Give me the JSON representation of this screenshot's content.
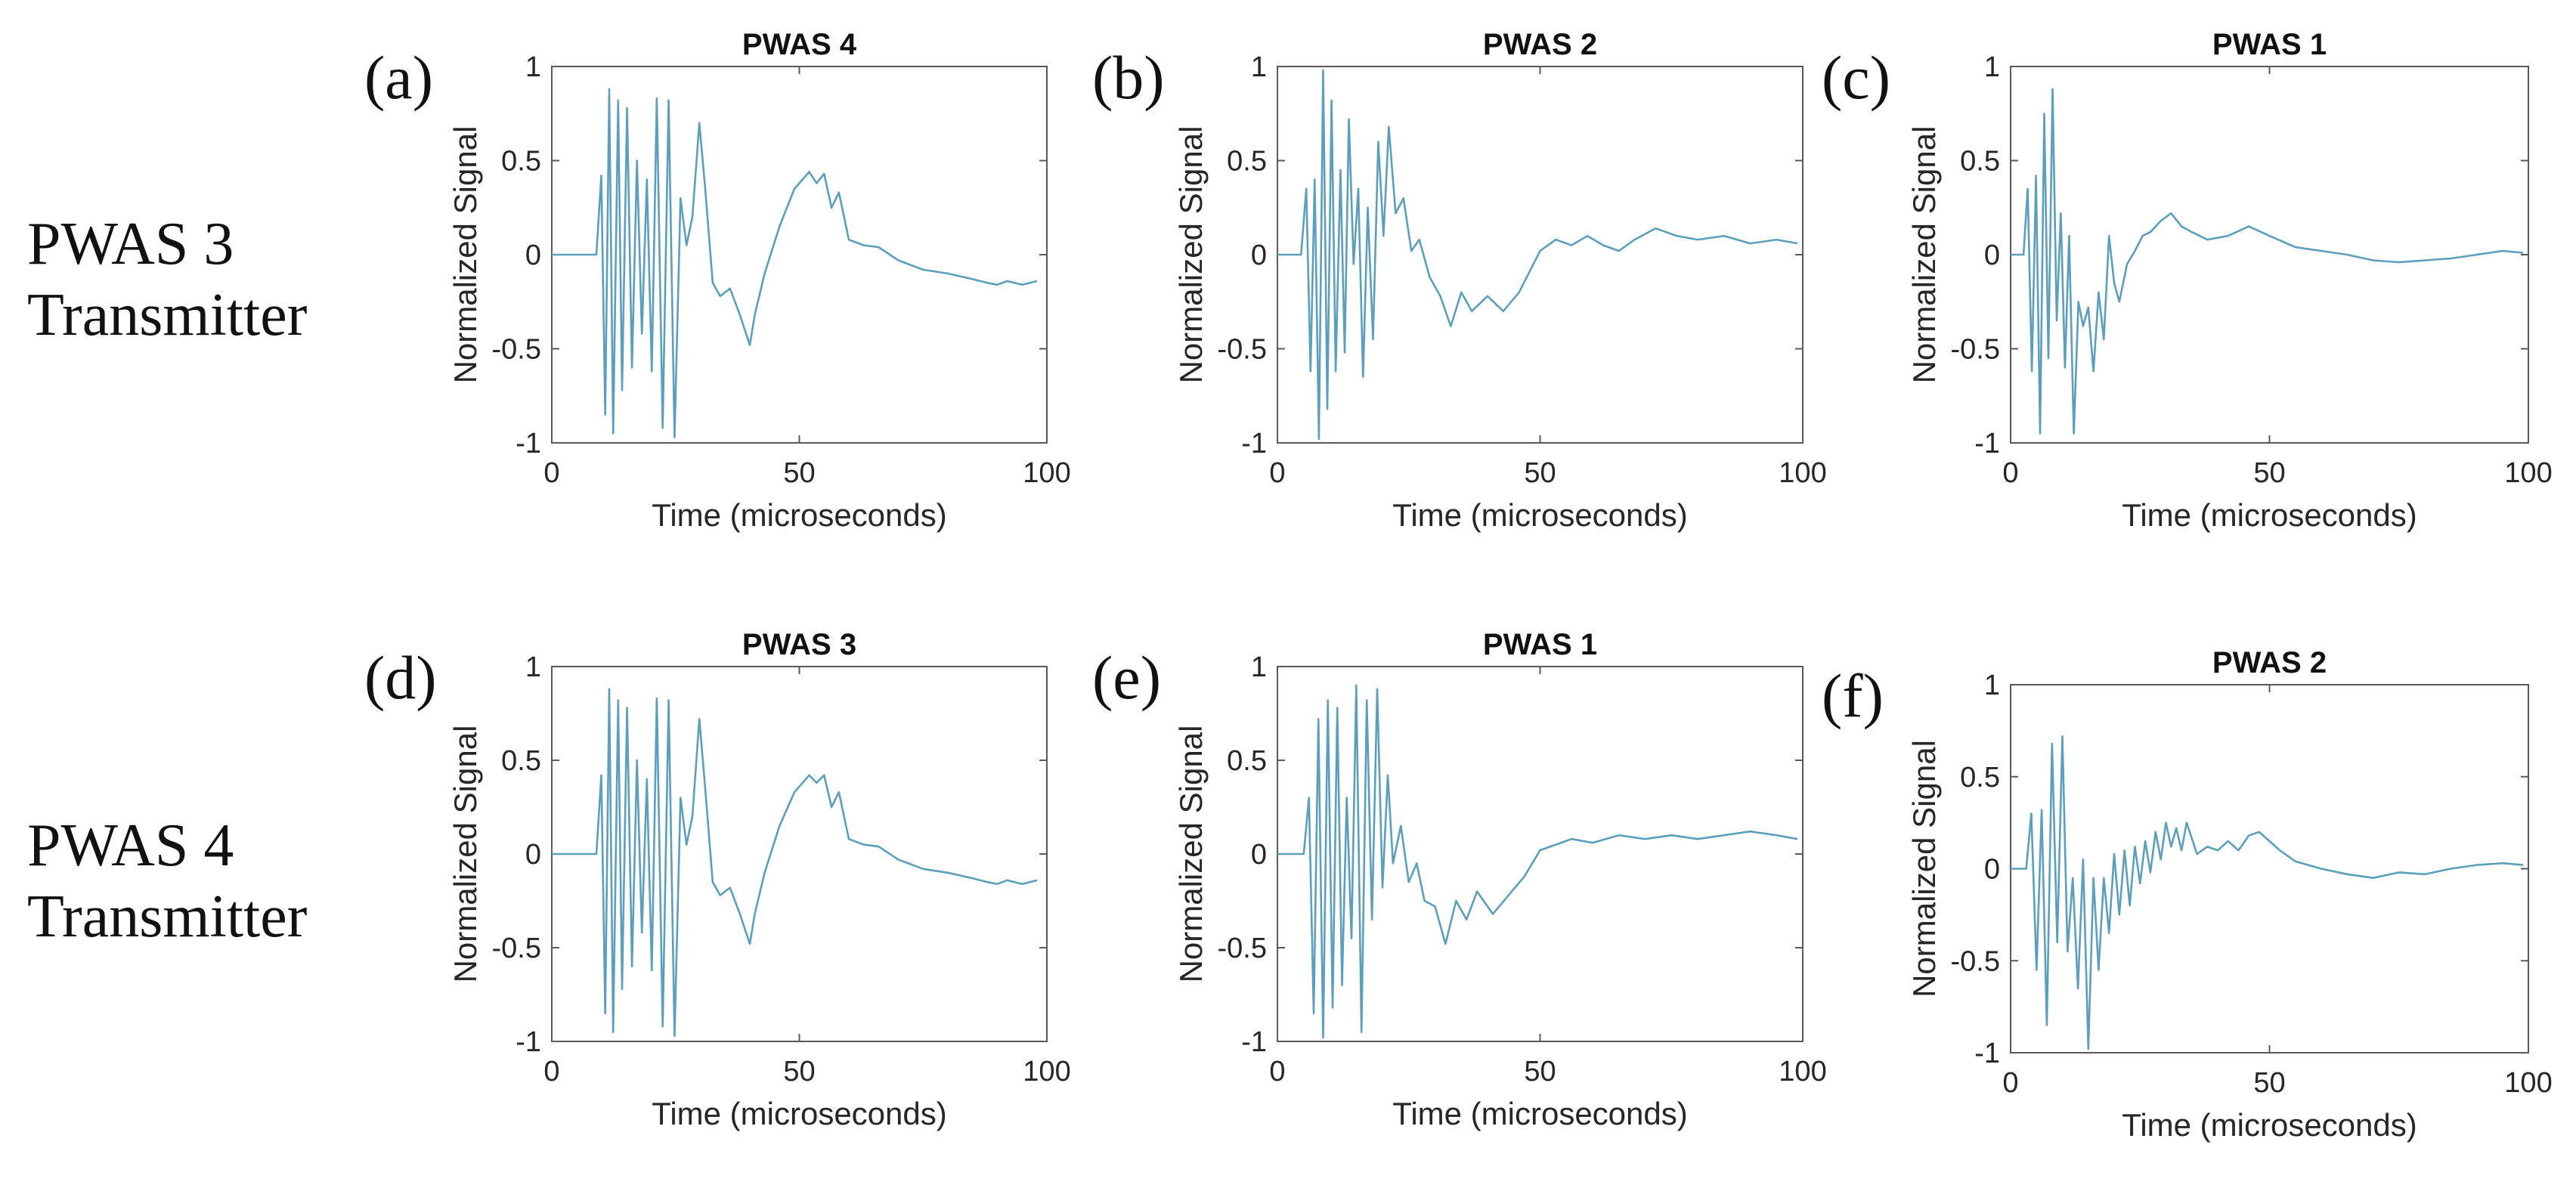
{
  "row_labels": [
    {
      "line1": "PWAS 3",
      "line2": "Transmitter"
    },
    {
      "line1": "PWAS 4",
      "line2": "Transmitter"
    }
  ],
  "colors": {
    "signal": "#5b9fbd",
    "axis": "#5a5a5a",
    "text": "#262626"
  },
  "chart_data": [
    {
      "type": "line",
      "panel": "(a)",
      "title": "PWAS 4",
      "xlabel": "Time (microseconds)",
      "ylabel": "Normalized Signal",
      "xlim": [
        0,
        100
      ],
      "ylim": [
        -1,
        1
      ],
      "xticks": [
        "0",
        "50",
        "100"
      ],
      "yticks": [
        "1",
        "0.5",
        "0",
        "-0.5",
        "-1"
      ],
      "series": [
        {
          "name": "signal",
          "x": [
            0,
            9,
            10,
            10.8,
            11.6,
            12.4,
            13.4,
            14.2,
            15.2,
            16.2,
            17.2,
            18.2,
            19.2,
            20.2,
            21.2,
            22.4,
            23.6,
            24.8,
            26,
            27.2,
            28.4,
            29.8,
            31,
            32.5,
            34,
            36,
            38,
            40,
            41,
            43,
            46,
            49,
            52,
            53.5,
            55,
            56.5,
            58,
            60,
            63,
            66,
            70,
            75,
            80,
            85,
            88,
            90,
            92,
            95,
            98
          ],
          "values": [
            0,
            0,
            0.42,
            -0.85,
            0.88,
            -0.95,
            0.82,
            -0.72,
            0.78,
            -0.6,
            0.5,
            -0.42,
            0.4,
            -0.62,
            0.83,
            -0.92,
            0.82,
            -0.97,
            0.3,
            0.05,
            0.2,
            0.7,
            0.35,
            -0.15,
            -0.22,
            -0.18,
            -0.32,
            -0.48,
            -0.32,
            -0.1,
            0.15,
            0.35,
            0.44,
            0.38,
            0.43,
            0.25,
            0.33,
            0.08,
            0.05,
            0.04,
            -0.03,
            -0.08,
            -0.1,
            -0.13,
            -0.15,
            -0.16,
            -0.14,
            -0.16,
            -0.14
          ]
        }
      ]
    },
    {
      "type": "line",
      "panel": "(b)",
      "title": "PWAS 2",
      "xlabel": "Time (microseconds)",
      "ylabel": "Normalized Signal",
      "xlim": [
        0,
        100
      ],
      "ylim": [
        -1,
        1
      ],
      "xticks": [
        "0",
        "50",
        "100"
      ],
      "yticks": [
        "1",
        "0.5",
        "0",
        "-0.5",
        "-1"
      ],
      "series": [
        {
          "name": "signal",
          "x": [
            0,
            4.5,
            5.5,
            6.3,
            7.1,
            7.9,
            8.7,
            9.5,
            10.3,
            11.1,
            12,
            12.8,
            13.6,
            14.5,
            15.4,
            16.3,
            17.2,
            18.2,
            19.2,
            20.2,
            21.2,
            22.5,
            24,
            25.5,
            27,
            29,
            31,
            33,
            35,
            37,
            40,
            43,
            46,
            50,
            53,
            56,
            59,
            62,
            65,
            68,
            72,
            76,
            80,
            85,
            90,
            95,
            99
          ],
          "values": [
            0,
            0,
            0.35,
            -0.62,
            0.4,
            -0.98,
            0.98,
            -0.82,
            0.82,
            -0.62,
            0.45,
            -0.52,
            0.72,
            -0.05,
            0.35,
            -0.65,
            0.25,
            -0.45,
            0.6,
            0.1,
            0.68,
            0.22,
            0.3,
            0.02,
            0.08,
            -0.12,
            -0.22,
            -0.38,
            -0.2,
            -0.3,
            -0.22,
            -0.3,
            -0.2,
            0.02,
            0.08,
            0.05,
            0.1,
            0.05,
            0.02,
            0.08,
            0.14,
            0.1,
            0.08,
            0.1,
            0.06,
            0.08,
            0.06
          ]
        }
      ]
    },
    {
      "type": "line",
      "panel": "(c)",
      "title": "PWAS 1",
      "xlabel": "Time (microseconds)",
      "ylabel": "Normalized Signal",
      "xlim": [
        0,
        100
      ],
      "ylim": [
        -1,
        1
      ],
      "xticks": [
        "0",
        "50",
        "100"
      ],
      "yticks": [
        "1",
        "0.5",
        "0",
        "-0.5",
        "-1"
      ],
      "series": [
        {
          "name": "signal",
          "x": [
            0,
            2.5,
            3.3,
            4.1,
            4.9,
            5.7,
            6.5,
            7.3,
            8.1,
            8.9,
            9.7,
            10.5,
            11.3,
            12.2,
            13.1,
            14,
            15,
            16,
            17,
            18,
            19,
            20,
            21,
            22.5,
            24,
            25.5,
            27,
            29,
            31,
            33,
            35,
            38,
            42,
            46,
            50,
            55,
            60,
            65,
            70,
            75,
            80,
            85,
            90,
            95,
            99
          ],
          "values": [
            0,
            0,
            0.35,
            -0.62,
            0.42,
            -0.95,
            0.75,
            -0.55,
            0.88,
            -0.35,
            0.22,
            -0.6,
            0.1,
            -0.95,
            -0.25,
            -0.38,
            -0.28,
            -0.62,
            -0.2,
            -0.45,
            0.1,
            -0.15,
            -0.25,
            -0.05,
            0.02,
            0.1,
            0.12,
            0.18,
            0.22,
            0.15,
            0.12,
            0.08,
            0.1,
            0.15,
            0.1,
            0.04,
            0.02,
            0.0,
            -0.03,
            -0.04,
            -0.03,
            -0.02,
            0.0,
            0.02,
            0.01
          ]
        }
      ]
    },
    {
      "type": "line",
      "panel": "(d)",
      "title": "PWAS 3",
      "xlabel": "Time (microseconds)",
      "ylabel": "Normalized Signal",
      "xlim": [
        0,
        100
      ],
      "ylim": [
        -1,
        1
      ],
      "xticks": [
        "0",
        "50",
        "100"
      ],
      "yticks": [
        "1",
        "0.5",
        "0",
        "-0.5",
        "-1"
      ],
      "series": [
        {
          "name": "signal",
          "x": [
            0,
            9,
            10,
            10.8,
            11.6,
            12.4,
            13.4,
            14.2,
            15.2,
            16.2,
            17.2,
            18.2,
            19.2,
            20.2,
            21.2,
            22.4,
            23.6,
            24.8,
            26,
            27.2,
            28.4,
            29.8,
            31,
            32.5,
            34,
            36,
            38,
            40,
            41,
            43,
            46,
            49,
            52,
            53.5,
            55,
            56.5,
            58,
            60,
            63,
            66,
            70,
            75,
            80,
            85,
            88,
            90,
            92,
            95,
            98
          ],
          "values": [
            0,
            0,
            0.42,
            -0.85,
            0.88,
            -0.95,
            0.82,
            -0.72,
            0.78,
            -0.6,
            0.5,
            -0.42,
            0.4,
            -0.62,
            0.83,
            -0.92,
            0.82,
            -0.97,
            0.3,
            0.05,
            0.2,
            0.72,
            0.35,
            -0.15,
            -0.22,
            -0.18,
            -0.32,
            -0.48,
            -0.32,
            -0.1,
            0.15,
            0.33,
            0.42,
            0.38,
            0.42,
            0.25,
            0.33,
            0.08,
            0.05,
            0.04,
            -0.03,
            -0.08,
            -0.1,
            -0.13,
            -0.15,
            -0.16,
            -0.14,
            -0.16,
            -0.14
          ]
        }
      ]
    },
    {
      "type": "line",
      "panel": "(e)",
      "title": "PWAS 1",
      "xlabel": "Time (microseconds)",
      "ylabel": "Normalized Signal",
      "xlim": [
        0,
        100
      ],
      "ylim": [
        -1,
        1
      ],
      "xticks": [
        "0",
        "50",
        "100"
      ],
      "yticks": [
        "1",
        "0.5",
        "0",
        "-0.5",
        "-1"
      ],
      "series": [
        {
          "name": "signal",
          "x": [
            0,
            5,
            6,
            6.9,
            7.8,
            8.7,
            9.6,
            10.5,
            11.4,
            12.3,
            13.2,
            14.1,
            15,
            16,
            17,
            18,
            19,
            20,
            21,
            22,
            23.5,
            25,
            26.5,
            28,
            30,
            32,
            34,
            36,
            38,
            41,
            44,
            47,
            50,
            53,
            56,
            60,
            65,
            70,
            75,
            80,
            85,
            90,
            95,
            99
          ],
          "values": [
            0,
            0,
            0.3,
            -0.85,
            0.72,
            -0.98,
            0.82,
            -0.82,
            0.78,
            -0.7,
            0.3,
            -0.45,
            0.9,
            -0.95,
            0.82,
            -0.35,
            0.88,
            -0.18,
            0.42,
            -0.05,
            0.15,
            -0.15,
            -0.05,
            -0.25,
            -0.28,
            -0.48,
            -0.25,
            -0.35,
            -0.2,
            -0.32,
            -0.22,
            -0.12,
            0.02,
            0.05,
            0.08,
            0.06,
            0.1,
            0.08,
            0.1,
            0.08,
            0.1,
            0.12,
            0.1,
            0.08
          ]
        }
      ]
    },
    {
      "type": "line",
      "panel": "(f)",
      "title": "PWAS 2",
      "xlabel": "Time (microseconds)",
      "ylabel": "Normalized Signal",
      "xlim": [
        0,
        100
      ],
      "ylim": [
        -1,
        1
      ],
      "xticks": [
        "0",
        "50",
        "100"
      ],
      "yticks": [
        "1",
        "0.5",
        "0",
        "-0.5",
        "-1"
      ],
      "series": [
        {
          "name": "signal",
          "x": [
            0,
            3,
            4,
            5,
            6,
            7,
            8,
            9,
            10,
            11,
            12,
            13,
            14,
            15,
            16,
            17,
            18,
            19,
            20,
            21,
            22,
            23,
            24,
            25,
            26,
            27,
            28,
            29,
            30,
            31,
            32,
            33,
            34,
            36,
            38,
            40,
            42,
            44,
            46,
            48,
            50,
            52,
            55,
            60,
            65,
            70,
            75,
            80,
            85,
            90,
            95,
            99
          ],
          "values": [
            0,
            0,
            0.3,
            -0.55,
            0.32,
            -0.85,
            0.68,
            -0.4,
            0.72,
            -0.45,
            -0.05,
            -0.65,
            0.05,
            -0.98,
            -0.05,
            -0.55,
            -0.05,
            -0.35,
            0.08,
            -0.25,
            0.1,
            -0.2,
            0.12,
            -0.08,
            0.15,
            -0.02,
            0.2,
            0.05,
            0.25,
            0.12,
            0.22,
            0.1,
            0.25,
            0.08,
            0.12,
            0.1,
            0.15,
            0.1,
            0.18,
            0.2,
            0.15,
            0.1,
            0.04,
            0.0,
            -0.03,
            -0.05,
            -0.02,
            -0.03,
            0.0,
            0.02,
            0.03,
            0.02
          ]
        }
      ]
    }
  ]
}
